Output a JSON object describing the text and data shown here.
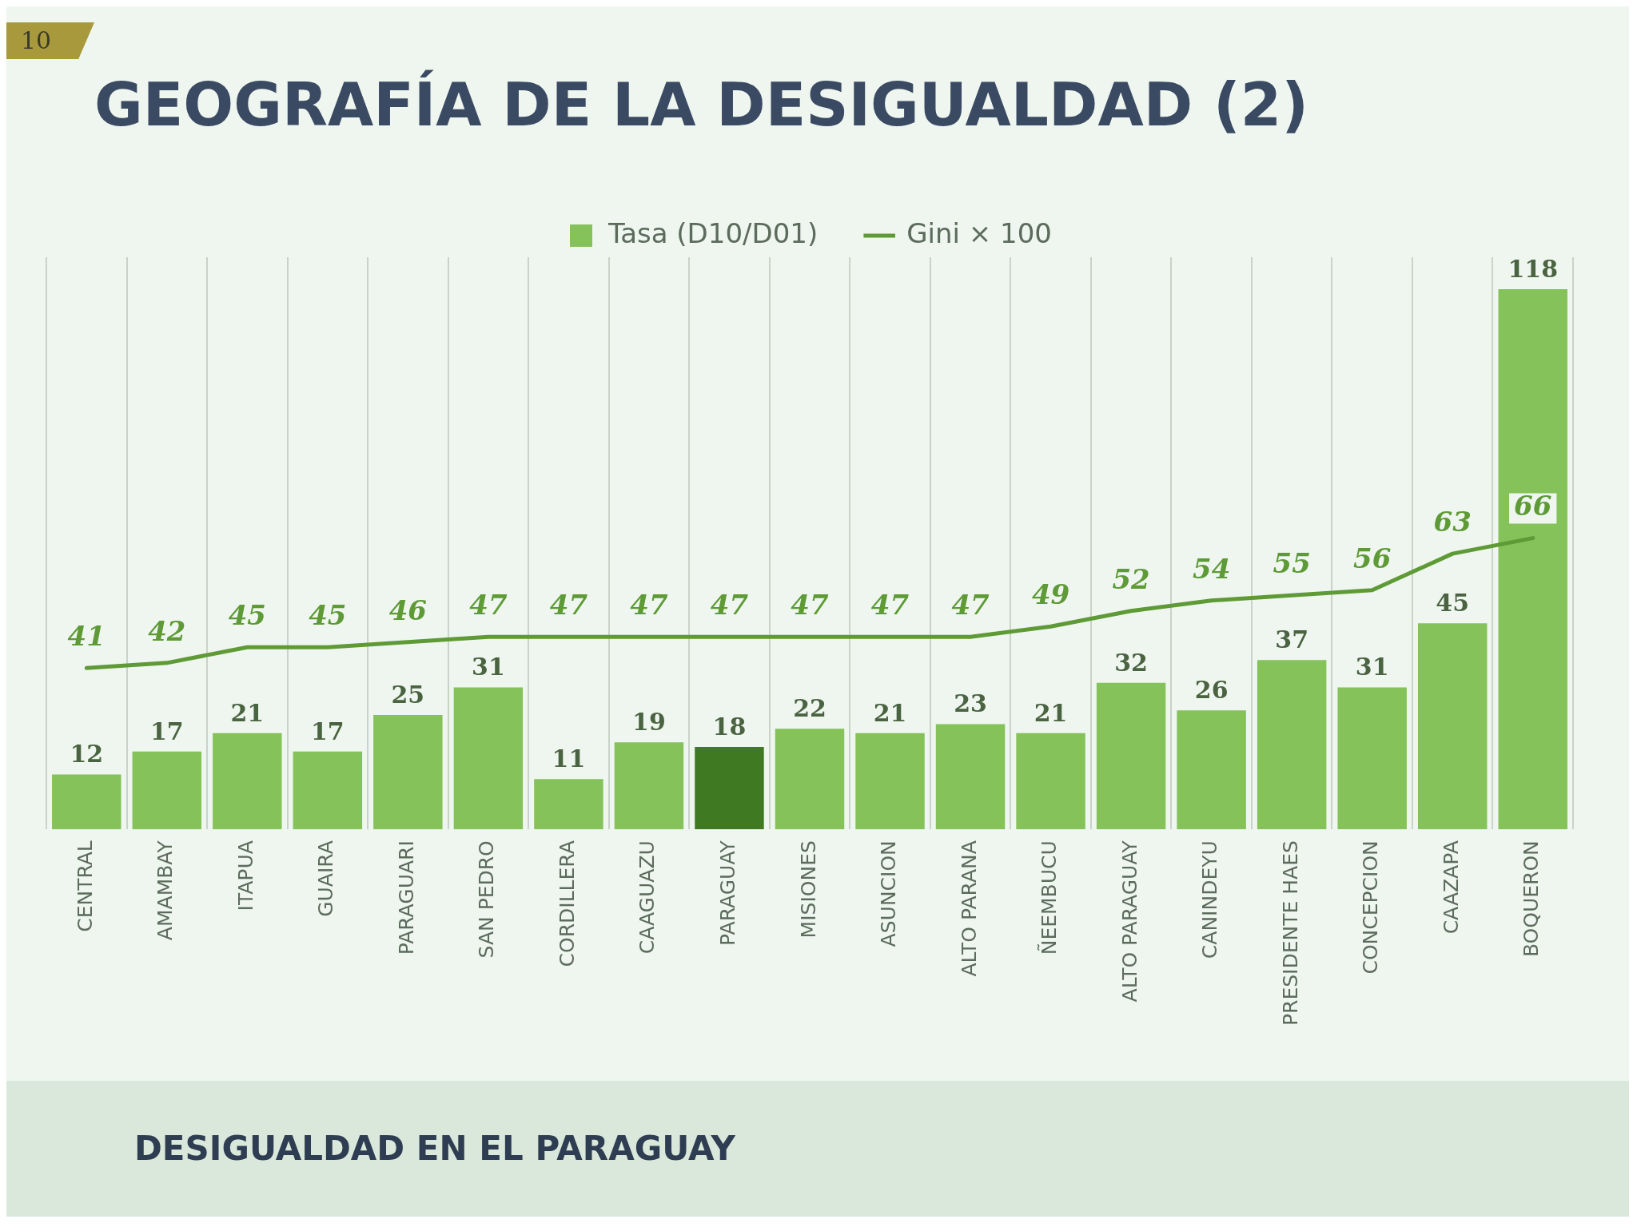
{
  "chart_data": {
    "type": "bar",
    "title": "GEOGRAFÍA DE LA DESIGUALDAD (2)",
    "categories": [
      "CENTRAL",
      "AMAMBAY",
      "ITAPUA",
      "GUAIRA",
      "PARAGUARI",
      "SAN PEDRO",
      "CORDILLERA",
      "CAAGUAZU",
      "PARAGUAY",
      "MISIONES",
      "ASUNCION",
      "ALTO PARANA",
      "ÑEEMBUCU",
      "ALTO PARAGUAY",
      "CANINDEYU",
      "PRESIDENTE HAES",
      "CONCEPCION",
      "CAAZAPA",
      "BOQUERON"
    ],
    "series": [
      {
        "name": "Tasa (D10/D01)",
        "color": "#86c25a",
        "colors": [
          "#86c25a",
          "#86c25a",
          "#86c25a",
          "#86c25a",
          "#86c25a",
          "#86c25a",
          "#86c25a",
          "#86c25a",
          "#3f7a22",
          "#86c25a",
          "#86c25a",
          "#86c25a",
          "#86c25a",
          "#86c25a",
          "#86c25a",
          "#86c25a",
          "#86c25a",
          "#86c25a",
          "#86c25a"
        ],
        "values": [
          12,
          17,
          21,
          17,
          25,
          31,
          11,
          19,
          18,
          22,
          21,
          23,
          21,
          32,
          26,
          37,
          31,
          45,
          118
        ]
      },
      {
        "name": "Gini × 100",
        "type": "line",
        "axis": "y2",
        "color": "#5e9a35",
        "values": [
          41,
          42,
          45,
          45,
          46,
          47,
          47,
          47,
          47,
          47,
          47,
          47,
          49,
          52,
          54,
          55,
          56,
          63,
          66
        ]
      }
    ],
    "ylim": [
      0,
      125
    ],
    "y2lim": [
      10,
      120
    ],
    "tick_labels": "x",
    "grid": "x",
    "legend": "top",
    "marker": "none",
    "line_style": "solid",
    "data_labels": true,
    "annotations": [
      "10",
      "DESIGUALDAD EN EL PARAGUAY"
    ]
  }
}
